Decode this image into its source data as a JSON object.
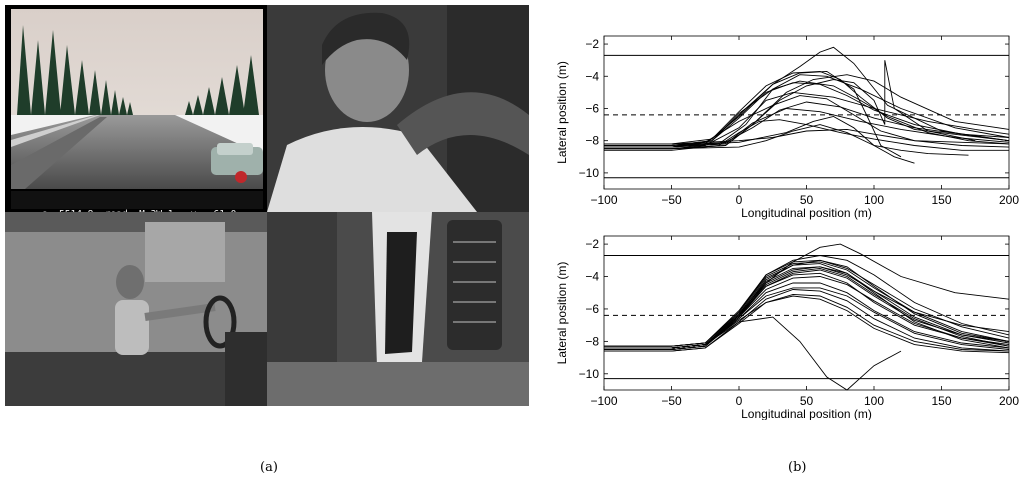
{
  "figure": {
    "captions": [
      "(a)",
      "(b)"
    ],
    "hud": {
      "s": "s =5514.8",
      "road": "road =M_3W_1",
      "v": "v = 61.0"
    }
  },
  "chart_data": [
    {
      "type": "line",
      "xlabel": "Longitudinal position (m)",
      "ylabel": "Lateral position (m)",
      "xlim": [
        -100,
        200
      ],
      "ylim": [
        -11,
        -1.5
      ],
      "xticks": [
        -100,
        -50,
        0,
        50,
        100,
        150,
        200
      ],
      "yticks": [
        -2,
        -4,
        -6,
        -8,
        -10
      ],
      "reference_lines": [
        {
          "y": -2.7,
          "style": "solid"
        },
        {
          "y": -6.4,
          "style": "dashed"
        },
        {
          "y": -10.3,
          "style": "solid"
        }
      ],
      "series": [
        {
          "x": [
            -100,
            -50,
            -25,
            0,
            25,
            45,
            60,
            70,
            85,
            110,
            150,
            200
          ],
          "y": [
            -8.4,
            -8.4,
            -8.2,
            -6.5,
            -4.5,
            -3.4,
            -2.5,
            -2.2,
            -3.2,
            -5.8,
            -7.4,
            -8.0
          ]
        },
        {
          "x": [
            -100,
            -50,
            -20,
            0,
            25,
            45,
            70,
            90,
            110,
            140,
            170,
            200
          ],
          "y": [
            -8.3,
            -8.3,
            -8.0,
            -6.3,
            -4.8,
            -4.3,
            -4.6,
            -5.5,
            -6.5,
            -7.5,
            -8.0,
            -8.2
          ]
        },
        {
          "x": [
            -100,
            -50,
            -10,
            10,
            35,
            55,
            80,
            100,
            120,
            160,
            200
          ],
          "y": [
            -8.5,
            -8.5,
            -8.3,
            -7.0,
            -5.0,
            -4.2,
            -3.9,
            -4.3,
            -5.3,
            -6.8,
            -7.3
          ]
        },
        {
          "x": [
            -100,
            -50,
            -25,
            0,
            25,
            45,
            65,
            85,
            105,
            130,
            165,
            200
          ],
          "y": [
            -8.4,
            -8.4,
            -8.1,
            -6.8,
            -5.8,
            -5.2,
            -5.4,
            -6.4,
            -7.4,
            -8.0,
            -8.3,
            -8.4
          ]
        },
        {
          "x": [
            -100,
            -50,
            0,
            25,
            50,
            80,
            100,
            130,
            165,
            200
          ],
          "y": [
            -8.2,
            -8.2,
            -8.0,
            -7.8,
            -7.4,
            -7.3,
            -7.6,
            -8.0,
            -8.1,
            -8.2
          ]
        },
        {
          "x": [
            -100,
            -50,
            0,
            35,
            55,
            70,
            85,
            100,
            115,
            130
          ],
          "y": [
            -8.3,
            -8.3,
            -8.1,
            -7.5,
            -6.8,
            -6.5,
            -7.2,
            -8.3,
            -9.0,
            -9.4
          ]
        },
        {
          "x": [
            -100,
            -50,
            -10,
            10,
            30,
            50,
            70,
            85,
            100,
            108,
            108,
            115,
            140,
            175
          ],
          "y": [
            -8.5,
            -8.5,
            -8.3,
            -7.0,
            -5.5,
            -4.6,
            -4.2,
            -4.4,
            -5.5,
            -7.0,
            -3.0,
            -6.0,
            -7.4,
            -8.0
          ]
        },
        {
          "x": [
            -100,
            -50,
            -20,
            5,
            25,
            45,
            65,
            85,
            95,
            105,
            120
          ],
          "y": [
            -8.4,
            -8.4,
            -8.0,
            -6.0,
            -4.5,
            -3.8,
            -3.7,
            -4.8,
            -6.5,
            -8.3,
            -9.0
          ]
        },
        {
          "x": [
            -100,
            -50,
            -15,
            0,
            15,
            30,
            50,
            75,
            100,
            130,
            165,
            200
          ],
          "y": [
            -8.6,
            -8.6,
            -8.3,
            -7.5,
            -6.8,
            -6.7,
            -7.0,
            -7.5,
            -7.9,
            -8.3,
            -8.6,
            -8.6
          ]
        },
        {
          "x": [
            -100,
            -50,
            -20,
            0,
            20,
            40,
            60,
            75,
            90,
            110,
            130,
            170,
            200
          ],
          "y": [
            -8.2,
            -8.2,
            -7.9,
            -6.2,
            -4.6,
            -3.8,
            -3.7,
            -4.2,
            -5.3,
            -6.6,
            -7.3,
            -7.7,
            -8.0
          ]
        },
        {
          "x": [
            -100,
            -50,
            -10,
            10,
            35,
            60,
            90,
            120,
            160,
            200
          ],
          "y": [
            -8.4,
            -8.4,
            -8.2,
            -6.9,
            -6.0,
            -6.2,
            -6.8,
            -7.3,
            -7.8,
            -8.1
          ]
        },
        {
          "x": [
            -100,
            -50,
            -25,
            0,
            20,
            40,
            70,
            100,
            140,
            175,
            200
          ],
          "y": [
            -8.5,
            -8.5,
            -8.3,
            -7.2,
            -5.5,
            -5.0,
            -5.3,
            -6.0,
            -6.8,
            -7.3,
            -7.6
          ]
        },
        {
          "x": [
            -100,
            -50,
            -10,
            10,
            30,
            50,
            75,
            100,
            130,
            165,
            200
          ],
          "y": [
            -8.3,
            -8.3,
            -8.1,
            -7.2,
            -6.1,
            -5.6,
            -5.9,
            -6.6,
            -7.2,
            -7.6,
            -7.8
          ]
        },
        {
          "x": [
            -100,
            -50,
            0,
            20,
            40,
            60,
            80,
            100,
            120,
            140,
            170
          ],
          "y": [
            -8.5,
            -8.5,
            -8.4,
            -8.0,
            -7.4,
            -7.0,
            -7.5,
            -8.3,
            -8.6,
            -8.8,
            -8.9
          ]
        },
        {
          "x": [
            -100,
            -50,
            -15,
            5,
            25,
            45,
            65,
            90,
            120,
            160,
            200
          ],
          "y": [
            -8.4,
            -8.4,
            -8.2,
            -7.0,
            -4.8,
            -3.9,
            -4.0,
            -4.8,
            -6.0,
            -7.2,
            -7.8
          ]
        },
        {
          "x": [
            -100,
            -50,
            -20,
            0,
            20,
            40,
            60,
            80,
            100,
            130,
            165,
            200
          ],
          "y": [
            -8.3,
            -8.3,
            -8.0,
            -6.6,
            -5.0,
            -4.4,
            -4.5,
            -5.2,
            -6.1,
            -7.0,
            -7.6,
            -8.0
          ]
        }
      ]
    },
    {
      "type": "line",
      "xlabel": "Longitudinal position (m)",
      "ylabel": "Lateral position (m)",
      "xlim": [
        -100,
        200
      ],
      "ylim": [
        -11,
        -1.5
      ],
      "xticks": [
        -100,
        -50,
        0,
        50,
        100,
        150,
        200
      ],
      "yticks": [
        -2,
        -4,
        -6,
        -8,
        -10
      ],
      "reference_lines": [
        {
          "y": -2.7,
          "style": "solid"
        },
        {
          "y": -6.4,
          "style": "dashed"
        },
        {
          "y": -10.3,
          "style": "solid"
        }
      ],
      "series": [
        {
          "x": [
            -100,
            -50,
            -25,
            0,
            20,
            40,
            60,
            80,
            100,
            130,
            165,
            200
          ],
          "y": [
            -8.4,
            -8.4,
            -8.2,
            -6.4,
            -4.2,
            -3.3,
            -3.0,
            -3.4,
            -4.6,
            -6.3,
            -7.5,
            -8.0
          ]
        },
        {
          "x": [
            -100,
            -50,
            -25,
            0,
            20,
            40,
            60,
            80,
            100,
            130,
            165,
            200
          ],
          "y": [
            -8.4,
            -8.4,
            -8.2,
            -6.4,
            -4.6,
            -3.9,
            -3.8,
            -4.4,
            -5.6,
            -7.0,
            -7.8,
            -8.2
          ]
        },
        {
          "x": [
            -100,
            -50,
            -25,
            0,
            20,
            40,
            60,
            80,
            100,
            130,
            165,
            200
          ],
          "y": [
            -8.5,
            -8.5,
            -8.3,
            -6.6,
            -5.0,
            -4.4,
            -4.4,
            -5.0,
            -6.1,
            -7.4,
            -8.1,
            -8.4
          ]
        },
        {
          "x": [
            -100,
            -50,
            -25,
            0,
            20,
            40,
            60,
            80,
            100,
            130,
            165,
            200
          ],
          "y": [
            -8.3,
            -8.3,
            -8.1,
            -6.2,
            -3.9,
            -3.0,
            -2.7,
            -3.0,
            -3.9,
            -5.6,
            -6.9,
            -7.6
          ]
        },
        {
          "x": [
            -100,
            -50,
            -25,
            0,
            20,
            40,
            60,
            80,
            100,
            130,
            165,
            200
          ],
          "y": [
            -8.6,
            -8.6,
            -8.4,
            -6.8,
            -5.4,
            -4.8,
            -4.9,
            -5.5,
            -6.6,
            -7.8,
            -8.4,
            -8.6
          ]
        },
        {
          "x": [
            -100,
            -50,
            -25,
            0,
            20,
            40,
            60,
            80,
            100,
            130,
            165,
            200
          ],
          "y": [
            -8.4,
            -8.4,
            -8.2,
            -6.3,
            -4.4,
            -3.6,
            -3.4,
            -3.8,
            -4.9,
            -6.5,
            -7.6,
            -8.1
          ]
        },
        {
          "x": [
            -100,
            -50,
            -25,
            0,
            20,
            40,
            60,
            75,
            90,
            120,
            160,
            200
          ],
          "y": [
            -8.4,
            -8.4,
            -8.2,
            -6.5,
            -4.4,
            -3.1,
            -2.2,
            -2.0,
            -2.6,
            -4.0,
            -5.0,
            -5.4
          ]
        },
        {
          "x": [
            -100,
            -50,
            -25,
            0,
            20,
            40,
            60,
            80,
            100,
            130,
            165,
            200
          ],
          "y": [
            -8.5,
            -8.5,
            -8.3,
            -6.5,
            -4.8,
            -4.1,
            -4.0,
            -4.5,
            -5.5,
            -6.9,
            -7.8,
            -8.3
          ]
        },
        {
          "x": [
            -100,
            -50,
            -25,
            0,
            20,
            40,
            60,
            80,
            100,
            130,
            165,
            200
          ],
          "y": [
            -8.3,
            -8.3,
            -8.1,
            -6.3,
            -4.1,
            -3.3,
            -3.2,
            -3.8,
            -5.0,
            -6.8,
            -7.9,
            -8.4
          ]
        },
        {
          "x": [
            -100,
            -50,
            -25,
            0,
            20,
            40,
            60,
            80,
            100,
            130,
            165,
            200
          ],
          "y": [
            -8.4,
            -8.4,
            -8.2,
            -6.6,
            -5.2,
            -4.7,
            -4.7,
            -5.2,
            -6.2,
            -7.5,
            -8.2,
            -8.5
          ]
        },
        {
          "x": [
            -100,
            -50,
            -25,
            0,
            20,
            40,
            60,
            80,
            100,
            130,
            165,
            200
          ],
          "y": [
            -8.5,
            -8.5,
            -8.3,
            -6.4,
            -4.3,
            -3.5,
            -3.4,
            -3.9,
            -4.9,
            -6.2,
            -7.0,
            -7.4
          ]
        },
        {
          "x": [
            -100,
            -50,
            -25,
            0,
            20,
            40,
            60,
            80,
            100,
            130,
            165,
            200
          ],
          "y": [
            -8.4,
            -8.4,
            -8.2,
            -6.7,
            -5.6,
            -5.1,
            -5.2,
            -5.9,
            -7.0,
            -8.0,
            -8.5,
            -8.6
          ]
        },
        {
          "x": [
            -100,
            -50,
            -25,
            0,
            25,
            45,
            65,
            80,
            100,
            120
          ],
          "y": [
            -8.4,
            -8.4,
            -8.2,
            -6.8,
            -6.5,
            -8.0,
            -10.2,
            -11.0,
            -9.5,
            -8.6
          ]
        },
        {
          "x": [
            -100,
            -50,
            -25,
            0,
            20,
            40,
            60,
            80,
            100,
            130,
            165,
            200
          ],
          "y": [
            -8.3,
            -8.3,
            -8.1,
            -6.1,
            -3.9,
            -3.1,
            -3.0,
            -3.5,
            -4.5,
            -6.0,
            -7.1,
            -7.8
          ]
        },
        {
          "x": [
            -100,
            -50,
            -25,
            0,
            20,
            40,
            60,
            80,
            100,
            130,
            165,
            200
          ],
          "y": [
            -8.5,
            -8.5,
            -8.3,
            -6.5,
            -4.6,
            -3.8,
            -3.6,
            -4.1,
            -5.2,
            -6.7,
            -7.6,
            -8.0
          ]
        },
        {
          "x": [
            -100,
            -50,
            -25,
            0,
            20,
            40,
            60,
            80,
            100,
            130,
            165,
            200
          ],
          "y": [
            -8.4,
            -8.4,
            -8.2,
            -6.4,
            -4.5,
            -3.7,
            -3.5,
            -4.0,
            -5.1,
            -6.6,
            -7.7,
            -8.3
          ]
        },
        {
          "x": [
            -100,
            -50,
            -25,
            0,
            20,
            40,
            60,
            80,
            100,
            130,
            165,
            200
          ],
          "y": [
            -8.6,
            -8.6,
            -8.4,
            -6.9,
            -5.6,
            -5.2,
            -5.4,
            -6.1,
            -7.2,
            -8.2,
            -8.6,
            -8.7
          ]
        },
        {
          "x": [
            -100,
            -50,
            -25,
            0,
            20,
            40,
            60,
            80,
            100,
            130,
            165,
            200
          ],
          "y": [
            -8.3,
            -8.3,
            -8.1,
            -6.2,
            -4.0,
            -3.2,
            -3.1,
            -3.6,
            -4.7,
            -6.2,
            -7.4,
            -8.0
          ]
        }
      ]
    }
  ]
}
